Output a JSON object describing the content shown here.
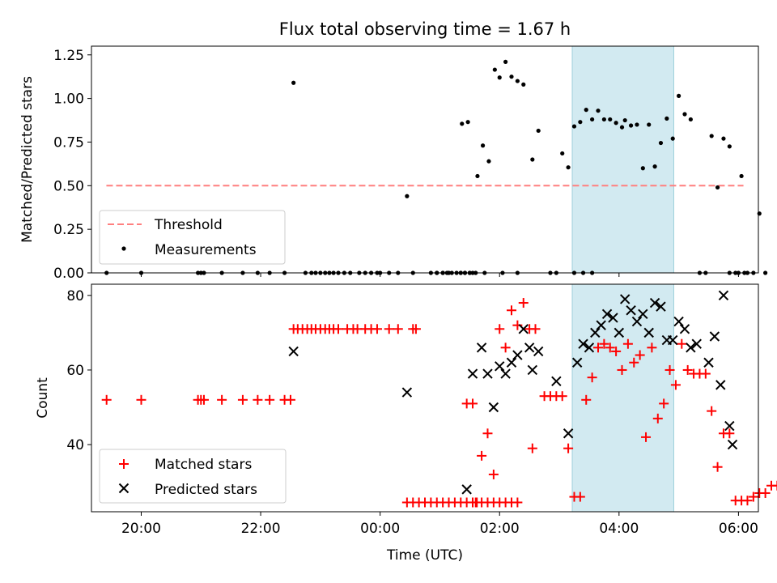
{
  "chart_data": [
    {
      "type": "scatter",
      "title": "Flux total observing time = 1.67 h",
      "xlabel": "",
      "ylabel": "Matched/Predicted stars",
      "ylim": [
        0,
        1.3
      ],
      "xlim": [
        "19:10",
        "06:20"
      ],
      "x_unit": "hours since 00:00 UTC",
      "yticks": [
        "0.00",
        "0.25",
        "0.50",
        "0.75",
        "1.00",
        "1.25"
      ],
      "highlight_span": {
        "x0": "03:13",
        "x1": "04:55",
        "color": "#add8e6"
      },
      "threshold": {
        "name": "Threshold",
        "y": 0.5,
        "x0": "19:25",
        "x1": "06:05",
        "color": "#ff7f7f",
        "style": "dashed"
      },
      "legend": {
        "position": "lower-left",
        "entries": [
          "Threshold",
          "Measurements"
        ]
      },
      "series": [
        {
          "name": "Measurements",
          "color": "#000000",
          "points": [
            [
              -4.58,
              0
            ],
            [
              -4.0,
              0
            ],
            [
              -3.05,
              0
            ],
            [
              -3.0,
              0
            ],
            [
              -2.95,
              0
            ],
            [
              -2.65,
              0
            ],
            [
              -2.3,
              0
            ],
            [
              -2.05,
              0
            ],
            [
              -1.85,
              0
            ],
            [
              -1.6,
              0
            ],
            [
              -1.45,
              1.09
            ],
            [
              -1.25,
              0
            ],
            [
              -1.15,
              0
            ],
            [
              -1.08,
              0
            ],
            [
              -1.0,
              0
            ],
            [
              -0.92,
              0
            ],
            [
              -0.85,
              0
            ],
            [
              -0.78,
              0
            ],
            [
              -0.7,
              0
            ],
            [
              -0.6,
              0
            ],
            [
              -0.5,
              0
            ],
            [
              -0.35,
              0
            ],
            [
              -0.25,
              0
            ],
            [
              -0.15,
              0
            ],
            [
              -0.05,
              0
            ],
            [
              0.0,
              0
            ],
            [
              0.15,
              0
            ],
            [
              0.3,
              0
            ],
            [
              0.55,
              0
            ],
            [
              0.85,
              0
            ],
            [
              0.95,
              0
            ],
            [
              1.05,
              0
            ],
            [
              1.15,
              0
            ],
            [
              1.35,
              0
            ],
            [
              1.42,
              0
            ],
            [
              1.5,
              0
            ],
            [
              1.55,
              0
            ],
            [
              0.45,
              0.44
            ],
            [
              0.95,
              0
            ],
            [
              1.05,
              0
            ],
            [
              1.12,
              0
            ],
            [
              1.2,
              0
            ],
            [
              1.28,
              0
            ],
            [
              1.35,
              0
            ],
            [
              1.42,
              0
            ],
            [
              1.5,
              0
            ],
            [
              1.6,
              0
            ],
            [
              1.75,
              0
            ],
            [
              2.05,
              0
            ],
            [
              2.3,
              0
            ],
            [
              1.37,
              0.855
            ],
            [
              1.47,
              0.865
            ],
            [
              1.63,
              0.555
            ],
            [
              1.72,
              0.73
            ],
            [
              1.82,
              0.64
            ],
            [
              1.92,
              1.165
            ],
            [
              2.0,
              1.12
            ],
            [
              2.1,
              1.21
            ],
            [
              2.2,
              1.125
            ],
            [
              2.3,
              1.1
            ],
            [
              2.4,
              1.08
            ],
            [
              2.55,
              0.65
            ],
            [
              2.65,
              0.815
            ],
            [
              2.85,
              0
            ],
            [
              2.95,
              0
            ],
            [
              3.05,
              0.685
            ],
            [
              3.15,
              0.605
            ],
            [
              3.25,
              0
            ],
            [
              3.4,
              0
            ],
            [
              3.55,
              0
            ],
            [
              3.25,
              0.84
            ],
            [
              3.35,
              0.865
            ],
            [
              3.45,
              0.935
            ],
            [
              3.55,
              0.88
            ],
            [
              3.65,
              0.93
            ],
            [
              3.75,
              0.88
            ],
            [
              3.85,
              0.88
            ],
            [
              3.95,
              0.86
            ],
            [
              4.05,
              0.835
            ],
            [
              4.1,
              0.875
            ],
            [
              4.2,
              0.845
            ],
            [
              4.3,
              0.85
            ],
            [
              4.4,
              0.6
            ],
            [
              4.5,
              0.85
            ],
            [
              4.6,
              0.61
            ],
            [
              4.7,
              0.745
            ],
            [
              4.8,
              0.885
            ],
            [
              4.9,
              0.77
            ],
            [
              5.0,
              1.015
            ],
            [
              5.1,
              0.91
            ],
            [
              5.2,
              0.88
            ],
            [
              5.35,
              0
            ],
            [
              5.45,
              0
            ],
            [
              5.55,
              0.785
            ],
            [
              5.65,
              0.49
            ],
            [
              5.75,
              0.77
            ],
            [
              5.85,
              0
            ],
            [
              5.95,
              0
            ],
            [
              6.05,
              0.555
            ],
            [
              6.15,
              0
            ],
            [
              6.25,
              0
            ],
            [
              6.35,
              0.34
            ],
            [
              6.45,
              0
            ],
            [
              5.85,
              0.725
            ],
            [
              6.0,
              0
            ],
            [
              6.1,
              0
            ]
          ]
        }
      ]
    },
    {
      "type": "scatter",
      "title": "",
      "xlabel": "Time (UTC)",
      "ylabel": "Count",
      "ylim": [
        22,
        83
      ],
      "xlim": [
        "19:10",
        "06:20"
      ],
      "x_unit": "hours since 00:00 UTC",
      "xticks": [
        "20:00",
        "22:00",
        "00:00",
        "02:00",
        "04:00",
        "06:00"
      ],
      "yticks": [
        "40",
        "60",
        "80"
      ],
      "highlight_span": {
        "x0": "03:13",
        "x1": "04:55",
        "color": "#add8e6"
      },
      "legend": {
        "position": "lower-left",
        "entries": [
          "Matched stars",
          "Predicted stars"
        ]
      },
      "series": [
        {
          "name": "Matched stars",
          "marker": "plus",
          "color": "#ff0000",
          "points": [
            [
              -4.58,
              52
            ],
            [
              -4.0,
              52
            ],
            [
              -3.05,
              52
            ],
            [
              -3.0,
              52
            ],
            [
              -2.95,
              52
            ],
            [
              -2.65,
              52
            ],
            [
              -2.3,
              52
            ],
            [
              -2.05,
              52
            ],
            [
              -1.85,
              52
            ],
            [
              -1.6,
              52
            ],
            [
              -1.5,
              52
            ],
            [
              -1.45,
              71
            ],
            [
              -1.38,
              71
            ],
            [
              -1.3,
              71
            ],
            [
              -1.22,
              71
            ],
            [
              -1.15,
              71
            ],
            [
              -1.08,
              71
            ],
            [
              -1.0,
              71
            ],
            [
              -0.92,
              71
            ],
            [
              -0.85,
              71
            ],
            [
              -0.78,
              71
            ],
            [
              -0.7,
              71
            ],
            [
              -0.55,
              71
            ],
            [
              -0.45,
              71
            ],
            [
              -0.38,
              71
            ],
            [
              -0.25,
              71
            ],
            [
              -0.15,
              71
            ],
            [
              -0.05,
              71
            ],
            [
              0.15,
              71
            ],
            [
              0.3,
              71
            ],
            [
              0.55,
              71
            ],
            [
              0.6,
              71
            ],
            [
              0.45,
              24.5
            ],
            [
              0.55,
              24.5
            ],
            [
              0.65,
              24.5
            ],
            [
              0.75,
              24.5
            ],
            [
              0.85,
              24.5
            ],
            [
              0.95,
              24.5
            ],
            [
              1.05,
              24.5
            ],
            [
              1.15,
              24.5
            ],
            [
              1.25,
              24.5
            ],
            [
              1.35,
              24.5
            ],
            [
              1.45,
              24.5
            ],
            [
              1.55,
              24.5
            ],
            [
              1.6,
              24.5
            ],
            [
              1.7,
              24.5
            ],
            [
              1.8,
              24.5
            ],
            [
              1.9,
              24.5
            ],
            [
              2.0,
              24.5
            ],
            [
              2.1,
              24.5
            ],
            [
              2.2,
              24.5
            ],
            [
              2.3,
              24.5
            ],
            [
              1.55,
              24.5
            ],
            [
              1.62,
              24.5
            ],
            [
              1.45,
              51
            ],
            [
              1.55,
              51
            ],
            [
              1.7,
              37
            ],
            [
              1.8,
              43
            ],
            [
              1.9,
              32
            ],
            [
              2.0,
              71
            ],
            [
              2.1,
              66
            ],
            [
              2.2,
              76
            ],
            [
              2.3,
              72
            ],
            [
              2.4,
              78
            ],
            [
              2.5,
              71
            ],
            [
              2.6,
              71
            ],
            [
              2.55,
              39
            ],
            [
              2.75,
              53
            ],
            [
              2.85,
              53
            ],
            [
              2.95,
              53
            ],
            [
              3.05,
              53
            ],
            [
              3.15,
              39
            ],
            [
              3.25,
              26
            ],
            [
              3.35,
              26
            ],
            [
              3.45,
              52
            ],
            [
              3.55,
              58
            ],
            [
              3.65,
              66
            ],
            [
              3.75,
              67
            ],
            [
              3.85,
              66
            ],
            [
              3.95,
              65
            ],
            [
              4.05,
              60
            ],
            [
              4.15,
              67
            ],
            [
              4.25,
              62
            ],
            [
              4.35,
              64
            ],
            [
              4.45,
              42
            ],
            [
              4.55,
              66
            ],
            [
              4.65,
              47
            ],
            [
              4.75,
              51
            ],
            [
              4.85,
              60
            ],
            [
              4.95,
              56
            ],
            [
              5.05,
              67
            ],
            [
              5.15,
              60
            ],
            [
              5.25,
              59
            ],
            [
              5.35,
              59
            ],
            [
              5.45,
              59
            ],
            [
              5.55,
              49
            ],
            [
              5.65,
              34
            ],
            [
              5.75,
              43
            ],
            [
              5.85,
              43
            ],
            [
              5.95,
              25
            ],
            [
              6.05,
              25
            ],
            [
              6.15,
              25
            ],
            [
              6.25,
              26
            ],
            [
              6.35,
              27
            ],
            [
              6.45,
              27
            ],
            [
              6.55,
              29
            ],
            [
              6.65,
              29
            ],
            [
              6.75,
              29
            ]
          ]
        },
        {
          "name": "Predicted stars",
          "marker": "x",
          "color": "#000000",
          "points": [
            [
              -1.45,
              65
            ],
            [
              0.45,
              54
            ],
            [
              1.45,
              28
            ],
            [
              1.55,
              59
            ],
            [
              1.7,
              66
            ],
            [
              1.8,
              59
            ],
            [
              1.9,
              50
            ],
            [
              2.0,
              61
            ],
            [
              2.1,
              59
            ],
            [
              2.2,
              62
            ],
            [
              2.3,
              64
            ],
            [
              2.4,
              71
            ],
            [
              2.5,
              66
            ],
            [
              2.55,
              60
            ],
            [
              2.65,
              65
            ],
            [
              2.95,
              57
            ],
            [
              3.15,
              43
            ],
            [
              3.3,
              62
            ],
            [
              3.4,
              67
            ],
            [
              3.5,
              66
            ],
            [
              3.6,
              70
            ],
            [
              3.7,
              72
            ],
            [
              3.8,
              75
            ],
            [
              3.9,
              74
            ],
            [
              4.0,
              70
            ],
            [
              4.1,
              79
            ],
            [
              4.2,
              76
            ],
            [
              4.3,
              73
            ],
            [
              4.4,
              75
            ],
            [
              4.5,
              70
            ],
            [
              4.6,
              78
            ],
            [
              4.7,
              77
            ],
            [
              4.8,
              68
            ],
            [
              4.9,
              68
            ],
            [
              5.0,
              73
            ],
            [
              5.1,
              71
            ],
            [
              5.2,
              66
            ],
            [
              5.3,
              67
            ],
            [
              5.5,
              62
            ],
            [
              5.6,
              69
            ],
            [
              5.7,
              56
            ],
            [
              5.85,
              45
            ],
            [
              5.75,
              80
            ],
            [
              5.9,
              40
            ]
          ]
        }
      ]
    }
  ]
}
